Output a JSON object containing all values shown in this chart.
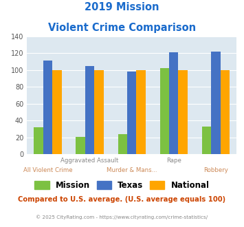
{
  "title_line1": "2019 Mission",
  "title_line2": "Violent Crime Comparison",
  "mission": [
    32,
    21,
    24,
    102,
    33
  ],
  "texas": [
    111,
    105,
    98,
    121,
    122
  ],
  "national": [
    100,
    100,
    100,
    100,
    100
  ],
  "mission_color": "#7cc142",
  "texas_color": "#4472c4",
  "national_color": "#ffa500",
  "ylim": [
    0,
    140
  ],
  "yticks": [
    0,
    20,
    40,
    60,
    80,
    100,
    120,
    140
  ],
  "bg_color": "#dde8f0",
  "title_color": "#1a6bcc",
  "top_labels": [
    "",
    "Aggravated Assault",
    "",
    "Rape",
    ""
  ],
  "top_label_color": "#888888",
  "bot_labels": [
    "All Violent Crime",
    "",
    "Murder & Mans...",
    "",
    "Robbery"
  ],
  "bot_label_color": "#cc8855",
  "footer_text": "Compared to U.S. average. (U.S. average equals 100)",
  "footer_color": "#cc4400",
  "copyright_text": "© 2025 CityRating.com - https://www.cityrating.com/crime-statistics/",
  "copyright_color": "#888888",
  "legend_labels": [
    "Mission",
    "Texas",
    "National"
  ]
}
